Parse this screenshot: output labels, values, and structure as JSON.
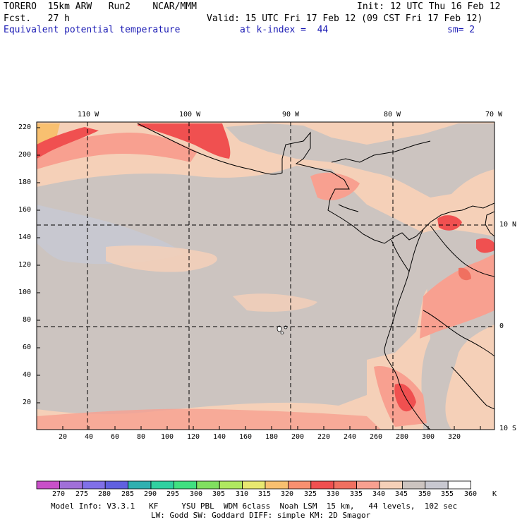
{
  "header": {
    "model": "TORERO  15km ARW   Run2    NCAR/MMM",
    "init": "Init: 12 UTC Thu 16 Feb 12",
    "fcst": "Fcst.   27 h",
    "valid": "Valid: 15 UTC Fri 17 Feb 12 (09 CST Fri 17 Feb 12)",
    "field": "Equivalent potential temperature",
    "level": "at k-index =  44",
    "smooth": "sm= 2"
  },
  "axes": {
    "top_lon": [
      "110 W",
      "100 W",
      "90 W",
      "80 W",
      "70 W"
    ],
    "right_lat": [
      "10 N",
      "0",
      "10 S"
    ],
    "left_ticks": [
      "220",
      "200",
      "180",
      "160",
      "140",
      "120",
      "100",
      "80",
      "60",
      "40",
      "20"
    ],
    "bottom_ticks": [
      "20",
      "40",
      "60",
      "80",
      "100",
      "120",
      "140",
      "160",
      "180",
      "200",
      "220",
      "240",
      "260",
      "280",
      "300",
      "320"
    ]
  },
  "colorbar": {
    "unit": "K",
    "labels": [
      "270",
      "275",
      "280",
      "285",
      "290",
      "295",
      "300",
      "305",
      "310",
      "315",
      "320",
      "325",
      "330",
      "335",
      "340",
      "345",
      "350",
      "355",
      "360"
    ],
    "colors": [
      "#c850c8",
      "#a070d8",
      "#8070e8",
      "#6060e0",
      "#30b0b0",
      "#30d0a0",
      "#40e080",
      "#80e060",
      "#b0e860",
      "#e8e870",
      "#f8c070",
      "#f89070",
      "#f05050",
      "#f07060",
      "#f8a090",
      "#f5d0b8",
      "#ccc4c0",
      "#c8c8d0",
      "#ffffff"
    ]
  },
  "footer": {
    "line1": "Model Info: V3.3.1   KF     YSU PBL  WDM 6class  Noah LSM  15 km,   44 levels,  102 sec",
    "line2": "LW: Godd SW: Goddard DIFF: simple KM: 2D Smagor"
  }
}
